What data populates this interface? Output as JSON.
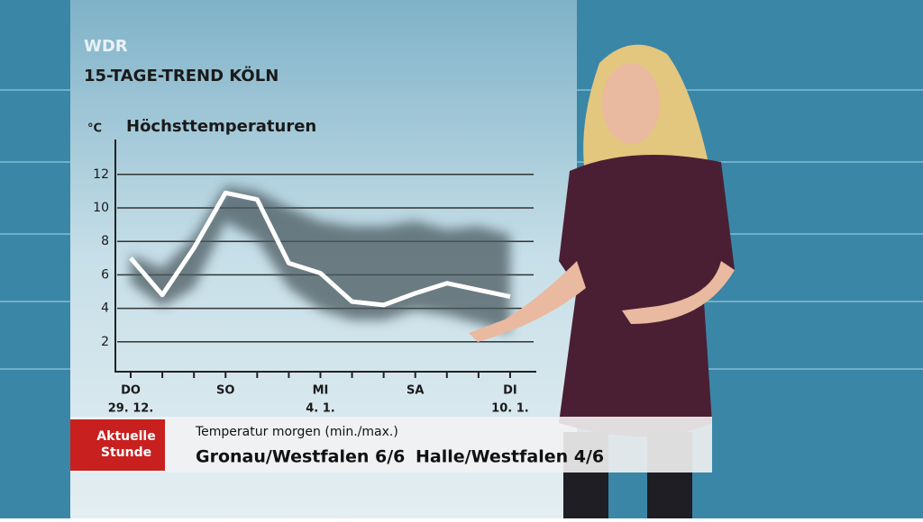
{
  "channel": "WDR",
  "chart_data": {
    "type": "line",
    "title": "15-TAGE-TREND KÖLN",
    "subtitle": "Höchsttemperaturen",
    "y_unit": "°C",
    "categories": [
      "DO",
      null,
      null,
      "SO",
      null,
      null,
      "MI",
      null,
      null,
      "SA",
      null,
      null,
      "DI"
    ],
    "date_labels": [
      "29. 12.",
      null,
      null,
      null,
      null,
      null,
      "4. 1.",
      null,
      null,
      null,
      null,
      null,
      "10. 1."
    ],
    "values": [
      7.0,
      4.8,
      7.6,
      10.9,
      10.5,
      6.7,
      6.1,
      4.4,
      4.2,
      4.9,
      5.5,
      5.1,
      4.7
    ],
    "color": "#ffffff",
    "band": {
      "high": [
        7.2,
        6.4,
        8.3,
        11.3,
        11.0,
        10.0,
        9.2,
        8.9,
        8.9,
        9.2,
        8.7,
        8.9,
        8.4
      ],
      "low": [
        5.5,
        4.1,
        5.2,
        9.2,
        8.1,
        5.2,
        3.9,
        3.3,
        3.3,
        3.9,
        3.6,
        3.1,
        2.5
      ],
      "color": "#4b5a60"
    },
    "ylim": [
      0,
      14
    ],
    "yticks": [
      2,
      4,
      6,
      8,
      10,
      12
    ],
    "grid": true
  },
  "ticker": {
    "logo": "Aktuelle Stunde",
    "heading": "Temperatur morgen (min./max.)",
    "items": [
      "Gronau/Westfalen 6/6",
      "Halle/Westfalen 4/6"
    ]
  }
}
